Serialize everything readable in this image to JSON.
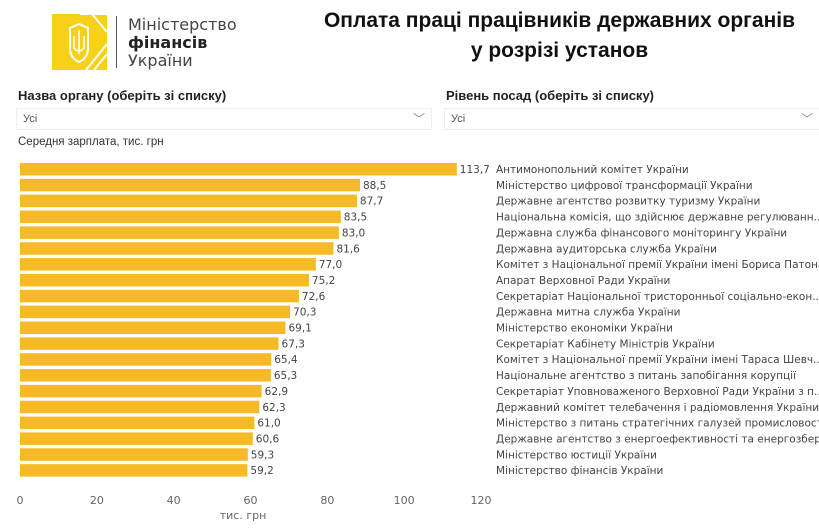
{
  "logo": {
    "line1": "Міністерство",
    "line2": "фінансів",
    "line3": "України"
  },
  "header": {
    "title_line1": "Оплата праці працівників державних органів",
    "title_line2": "у розрізі установ"
  },
  "filters": [
    {
      "label": "Назва органу (оберіть зі списку)",
      "value": "Усі"
    },
    {
      "label": "Рівень посад (оберіть зі списку)",
      "value": "Усі"
    }
  ],
  "colors": {
    "bar": "#F6B928"
  },
  "chart_data": {
    "type": "bar",
    "orientation": "horizontal",
    "title": "Середня зарплата, тис. грн",
    "xlabel": "тис. грн",
    "xlim": [
      0,
      120
    ],
    "xticks": [
      0,
      20,
      40,
      60,
      80,
      100,
      120
    ],
    "grid": false,
    "categories": [
      "Антимонопольний комітет України",
      "Міністерство цифрової трансформації України",
      "Державне агентство розвитку туризму України",
      "Національна комісія, що здійснює державне регулюванн...",
      "Державна служба фінансового моніторингу України",
      "Державна аудиторська служба України",
      "Комітет з Національної премії України імені Бориса Патона",
      "Апарат Верховної Ради України",
      "Секретаріат Національної тристоронньої соціально-екон...",
      "Державна митна служба України",
      "Міністерство економіки України",
      "Секретаріат Кабінету Міністрів України",
      "Комітет з Національної премії України імені Тараса Шевч...",
      "Національне агентство з питань запобігання корупції",
      "Секретаріат Уповноваженого Верховної Ради України з п...",
      "Державний комітет телебачення і радіомовлення України",
      "Міністерство з питань стратегічних галузей промисловост...",
      "Державне агентство з енергоефективності та енергозбер...",
      "Міністерство юстиції України",
      "Міністерство фінансів України"
    ],
    "values": [
      113.7,
      88.5,
      87.7,
      83.5,
      83.0,
      81.6,
      77.0,
      75.2,
      72.6,
      70.3,
      69.1,
      67.3,
      65.4,
      65.3,
      62.9,
      62.3,
      61.0,
      60.6,
      59.3,
      59.2
    ],
    "value_labels": [
      "113,7",
      "88,5",
      "87,7",
      "83,5",
      "83,0",
      "81,6",
      "77,0",
      "75,2",
      "72,6",
      "70,3",
      "69,1",
      "67,3",
      "65,4",
      "65,3",
      "62,9",
      "62,3",
      "61,0",
      "60,6",
      "59,3",
      "59,2"
    ]
  }
}
